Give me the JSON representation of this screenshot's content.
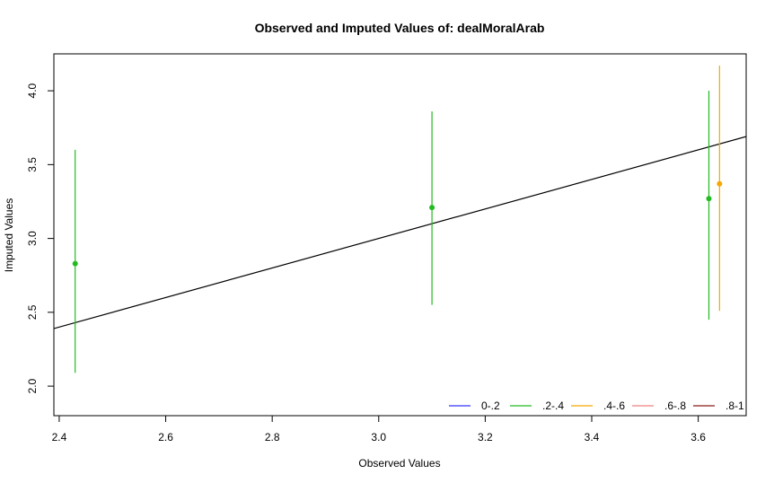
{
  "chart_data": {
    "type": "scatter",
    "title": "Observed and Imputed Values of: dealMoralArab",
    "xlabel": "Observed Values",
    "ylabel": "Imputed Values",
    "xlim": [
      2.39,
      3.69
    ],
    "ylim": [
      1.8,
      4.25
    ],
    "x_ticks": [
      2.4,
      2.6,
      2.8,
      3.0,
      3.2,
      3.4,
      3.6
    ],
    "x_tick_labels": [
      "2.4",
      "2.6",
      "2.8",
      "3.0",
      "3.2",
      "3.4",
      "3.6"
    ],
    "y_ticks": [
      2.0,
      2.5,
      3.0,
      3.5,
      4.0
    ],
    "y_tick_labels": [
      "2.0",
      "2.5",
      "3.0",
      "3.5",
      "4.0"
    ],
    "reference_line": {
      "slope": 1,
      "intercept": 0,
      "color": "#000000"
    },
    "points": [
      {
        "x": 2.43,
        "y": 2.83,
        "low": 2.09,
        "high": 3.6,
        "group": ".2-.4",
        "color": "#22bb22"
      },
      {
        "x": 3.1,
        "y": 3.21,
        "low": 2.55,
        "high": 3.86,
        "group": ".2-.4",
        "color": "#22bb22"
      },
      {
        "x": 3.62,
        "y": 3.27,
        "low": 2.45,
        "high": 4.0,
        "group": ".2-.4",
        "color": "#22bb22"
      },
      {
        "x": 3.64,
        "y": 3.37,
        "low": 2.51,
        "high": 4.17,
        "group": ".4-.6",
        "color": "#f5a800"
      }
    ],
    "legend": {
      "placement": "bottom-right",
      "entries": [
        {
          "label": "0-.2",
          "color": "#3333ff"
        },
        {
          "label": ".2-.4",
          "color": "#22bb22"
        },
        {
          "label": ".4-.6",
          "color": "#f5a800"
        },
        {
          "label": ".6-.8",
          "color": "#f08080"
        },
        {
          "label": ".8-1",
          "color": "#8b1a1a"
        }
      ]
    }
  }
}
